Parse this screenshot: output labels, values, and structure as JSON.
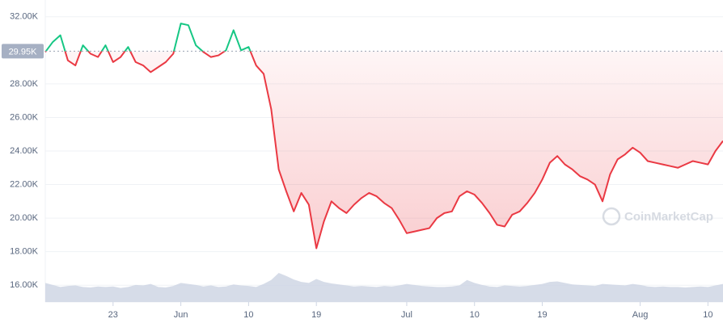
{
  "chart_data": {
    "type": "line",
    "x": [
      0,
      1,
      2,
      3,
      4,
      5,
      6,
      7,
      8,
      9,
      10,
      11,
      12,
      13,
      14,
      15,
      16,
      17,
      18,
      19,
      20,
      21,
      22,
      23,
      24,
      25,
      26,
      27,
      28,
      29,
      30,
      31,
      32,
      33,
      34,
      35,
      36,
      37,
      38,
      39,
      40,
      41,
      42,
      43,
      44,
      45,
      46,
      47,
      48,
      49,
      50,
      51,
      52,
      53,
      54,
      55,
      56,
      57,
      58,
      59,
      60,
      61,
      62,
      63,
      64,
      65,
      66,
      67,
      68,
      69,
      70,
      71,
      72,
      73,
      74,
      75,
      76,
      77,
      78,
      79,
      80,
      81,
      82,
      83,
      84,
      85,
      86,
      87,
      88,
      89,
      90
    ],
    "series": [
      {
        "values": [
          29900,
          30500,
          30900,
          29400,
          29100,
          30300,
          29800,
          29600,
          30300,
          29300,
          29600,
          30200,
          29300,
          29100,
          28700,
          29000,
          29300,
          29800,
          31600,
          31500,
          30300,
          29900,
          29600,
          29700,
          30000,
          31200,
          30000,
          30200,
          29100,
          28600,
          26500,
          22900,
          21600,
          20400,
          21500,
          20800,
          18200,
          19800,
          21000,
          20600,
          20300,
          20800,
          21200,
          21500,
          21300,
          20900,
          20600,
          19900,
          19100,
          19200,
          19300,
          19400,
          20000,
          20300,
          20400,
          21300,
          21600,
          21400,
          20900,
          20300,
          19600,
          19500,
          20200,
          20400,
          20900,
          21500,
          22300,
          23300,
          23700,
          23200,
          22900,
          22500,
          22300,
          22000,
          21000,
          22600,
          23500,
          23800,
          24200,
          23900,
          23400,
          23300,
          23200,
          23100,
          23000,
          23200,
          23400,
          23300,
          23200,
          24000,
          24600
        ],
        "color_above": "#16c784",
        "color_below": "#ea3943"
      }
    ],
    "volume": {
      "color": "#cfd6e4",
      "values": [
        38,
        34,
        30,
        32,
        33,
        30,
        29,
        31,
        30,
        31,
        28,
        30,
        34,
        33,
        36,
        30,
        29,
        32,
        38,
        36,
        34,
        31,
        33,
        30,
        31,
        35,
        33,
        32,
        30,
        36,
        44,
        58,
        52,
        45,
        40,
        38,
        46,
        40,
        37,
        35,
        33,
        31,
        32,
        31,
        30,
        32,
        31,
        33,
        36,
        34,
        32,
        31,
        30,
        30,
        31,
        33,
        44,
        38,
        34,
        31,
        30,
        33,
        32,
        31,
        32,
        34,
        36,
        40,
        41,
        38,
        35,
        34,
        33,
        32,
        36,
        35,
        34,
        33,
        36,
        34,
        31,
        30,
        31,
        30,
        30,
        29,
        30,
        31,
        30,
        33,
        36
      ]
    },
    "xlim": [
      0,
      90
    ],
    "xticks": [
      {
        "value": 9,
        "label": "23"
      },
      {
        "value": 18,
        "label": "Jun"
      },
      {
        "value": 27,
        "label": "10"
      },
      {
        "value": 36,
        "label": "19"
      },
      {
        "value": 48,
        "label": "Jul"
      },
      {
        "value": 57,
        "label": "10"
      },
      {
        "value": 66,
        "label": "19"
      },
      {
        "value": 79,
        "label": "Aug"
      },
      {
        "value": 88,
        "label": "10"
      }
    ],
    "ylim": [
      15000,
      33000
    ],
    "yticks": [
      {
        "value": 16000,
        "label": "16.00K"
      },
      {
        "value": 18000,
        "label": "18.00K"
      },
      {
        "value": 20000,
        "label": "20.00K"
      },
      {
        "value": 22000,
        "label": "22.00K"
      },
      {
        "value": 24000,
        "label": "24.00K"
      },
      {
        "value": 26000,
        "label": "26.00K"
      },
      {
        "value": 28000,
        "label": "28.00K"
      },
      {
        "value": 32000,
        "label": "32.00K"
      }
    ],
    "baseline": {
      "value": 29950,
      "label": "29.95K"
    },
    "grid": true,
    "watermark": "CoinMarketCap"
  }
}
